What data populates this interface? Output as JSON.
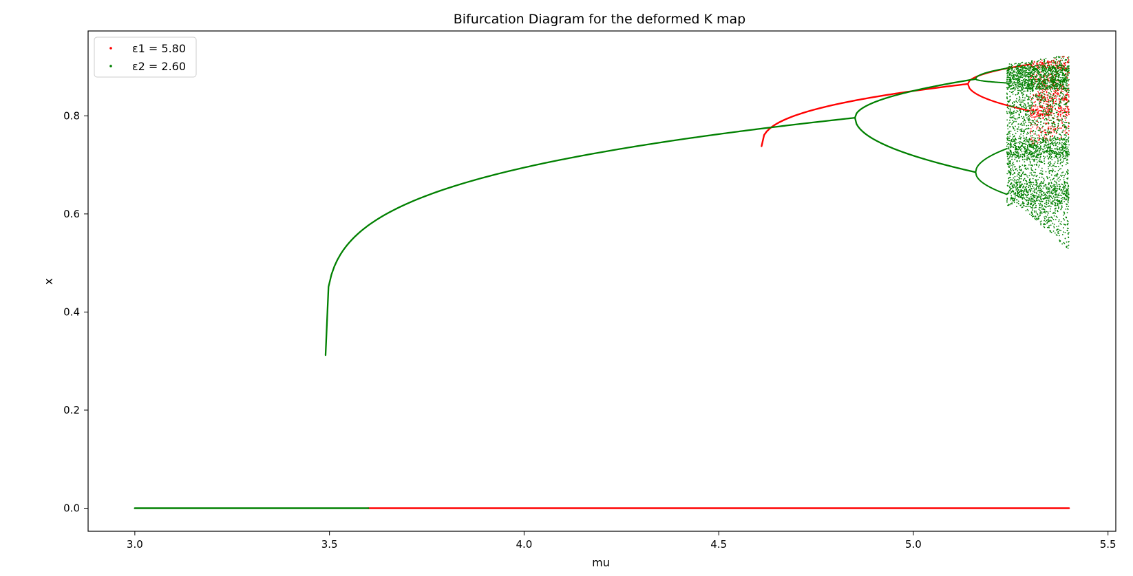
{
  "chart_data": {
    "type": "scatter",
    "title": "Bifurcation Diagram for the deformed K map",
    "xlabel": "mu",
    "ylabel": "x",
    "xlim": [
      2.88,
      5.52
    ],
    "ylim": [
      -0.047,
      0.973
    ],
    "x_ticks": [
      3.0,
      3.5,
      4.0,
      4.5,
      5.0,
      5.5
    ],
    "x_tick_labels": [
      "3.0",
      "3.5",
      "4.0",
      "4.5",
      "5.0",
      "5.5"
    ],
    "y_ticks": [
      0.0,
      0.2,
      0.4,
      0.6,
      0.8
    ],
    "y_tick_labels": [
      "0.0",
      "0.2",
      "0.4",
      "0.6",
      "0.8"
    ],
    "grid": false,
    "legend_position": "top-left",
    "series": [
      {
        "name": "ε1 = 5.80",
        "legend_label": "ε1 = 5.80",
        "color": "#ff0000",
        "description_points": {
          "fixed_zero": {
            "x_range": [
              3.0,
              5.4
            ],
            "y": 0.0
          },
          "branch_points": [
            {
              "x": 4.61,
              "y": 0.738
            },
            {
              "x": 4.65,
              "y": 0.775
            },
            {
              "x": 4.75,
              "y": 0.808
            },
            {
              "x": 4.9,
              "y": 0.838
            },
            {
              "x": 5.0,
              "y": 0.853
            },
            {
              "x": 5.1,
              "y": 0.863
            },
            {
              "x": 5.14,
              "y": 0.865
            }
          ],
          "period_two": {
            "start": {
              "x": 5.14,
              "y": 0.865
            },
            "upper_end": {
              "x": 5.3,
              "y": 0.905
            },
            "lower_end": {
              "x": 5.3,
              "y": 0.81
            }
          },
          "chaotic_region": {
            "x_range": [
              5.3,
              5.4
            ],
            "y_range": [
              0.74,
              0.925
            ]
          }
        }
      },
      {
        "name": "ε2 = 2.60",
        "legend_label": "ε2 = 2.60",
        "color": "#008000",
        "description_points": {
          "fixed_zero": {
            "x_range": [
              3.0,
              3.6
            ],
            "y": 0.0
          },
          "branch_points": [
            {
              "x": 3.49,
              "y": 0.312
            },
            {
              "x": 3.5,
              "y": 0.365
            },
            {
              "x": 3.55,
              "y": 0.45
            },
            {
              "x": 3.6,
              "y": 0.505
            },
            {
              "x": 3.7,
              "y": 0.575
            },
            {
              "x": 3.8,
              "y": 0.621
            },
            {
              "x": 4.0,
              "y": 0.685
            },
            {
              "x": 4.2,
              "y": 0.727
            },
            {
              "x": 4.4,
              "y": 0.756
            },
            {
              "x": 4.6,
              "y": 0.776
            },
            {
              "x": 4.85,
              "y": 0.796
            }
          ],
          "period_two": {
            "start": {
              "x": 4.85,
              "y": 0.796
            },
            "upper_end": {
              "x": 5.16,
              "y": 0.875
            },
            "lower_end": {
              "x": 5.16,
              "y": 0.685
            }
          },
          "period_four": [
            {
              "start": {
                "x": 5.16,
                "y": 0.875
              },
              "upper": {
                "x": 5.24,
                "y": 0.897
              },
              "lower": {
                "x": 5.24,
                "y": 0.867
              }
            },
            {
              "start": {
                "x": 5.16,
                "y": 0.685
              },
              "upper": {
                "x": 5.24,
                "y": 0.733
              },
              "lower": {
                "x": 5.24,
                "y": 0.64
              }
            }
          ],
          "chaotic_region": {
            "x_range": [
              5.24,
              5.4
            ],
            "y_range": [
              0.525,
              0.925
            ]
          }
        }
      }
    ]
  }
}
